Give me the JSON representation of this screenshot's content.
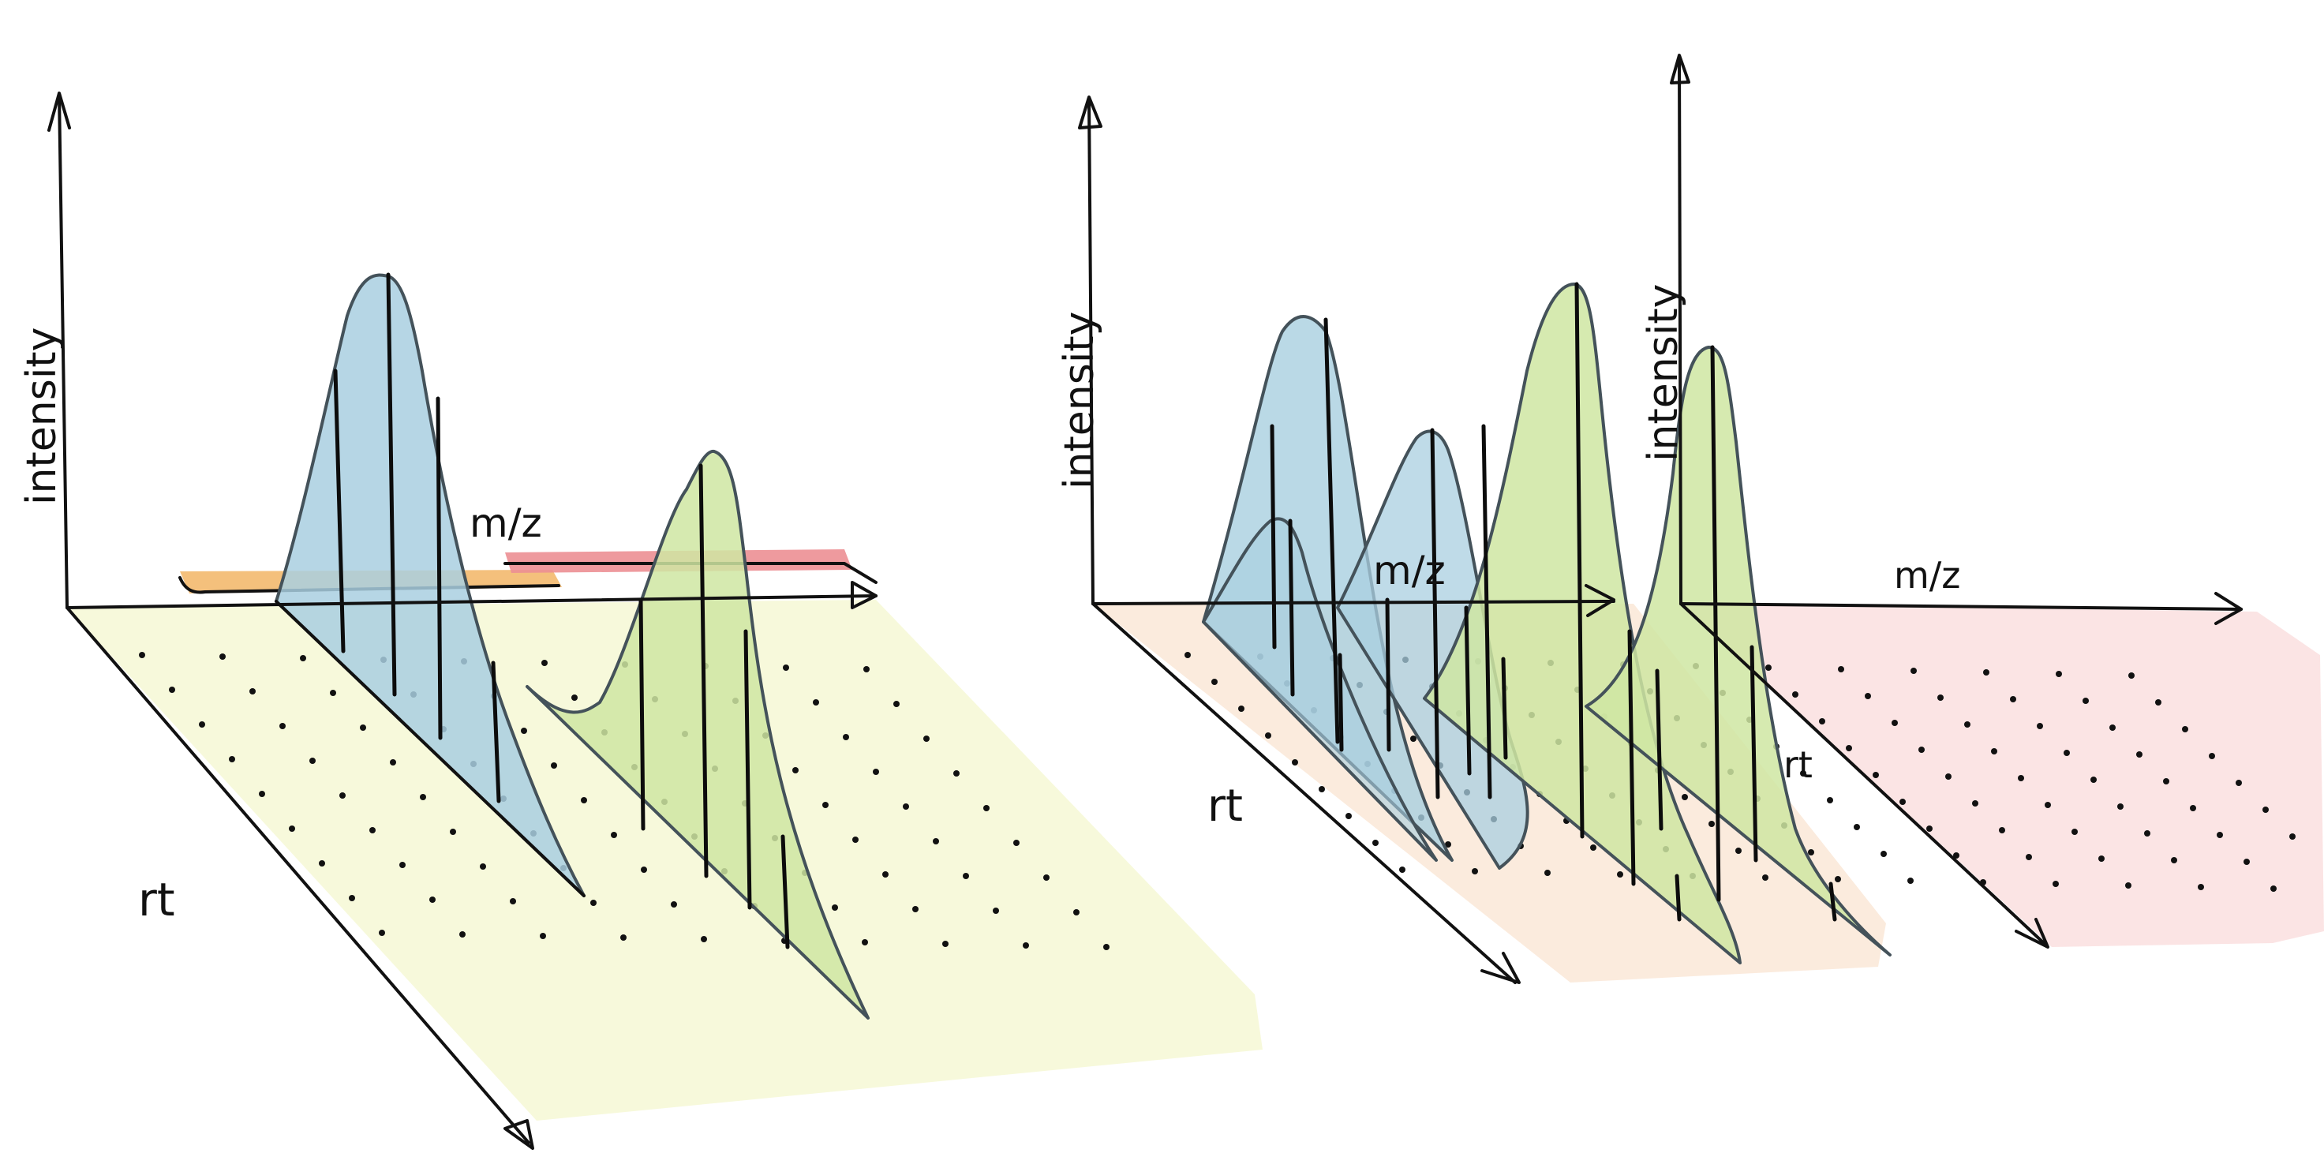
{
  "left_panel": {
    "y_label": "intensity",
    "x_label": "m/z",
    "depth_label": "rt",
    "peaks": [
      {
        "name": "blue",
        "color": "#a9cfe0",
        "sticks": 4
      },
      {
        "name": "green",
        "color": "#cfe6a2",
        "sticks": 4
      }
    ],
    "windows": [
      {
        "name": "orange",
        "color": "#f2b565"
      },
      {
        "name": "red",
        "color": "#ec8f93"
      }
    ],
    "plane_color": "#f7f9d9"
  },
  "right_panel": {
    "group_a": {
      "y_label": "intensity",
      "x_label": "m/z",
      "depth_label": "rt",
      "plane_color": "#fbeadb",
      "peaks": [
        {
          "name": "blue-1",
          "color": "#a9cfe0"
        },
        {
          "name": "blue-2",
          "color": "#a9cfe0"
        },
        {
          "name": "blue-3",
          "color": "#a9cfe0"
        },
        {
          "name": "green-1",
          "color": "#cfe6a2"
        }
      ]
    },
    "group_b": {
      "y_label": "intensity",
      "x_label": "m/z",
      "depth_label": "rt",
      "plane_color": "#fbe3e3",
      "peaks": [
        {
          "name": "green-2",
          "color": "#cfe6a2"
        }
      ]
    }
  }
}
